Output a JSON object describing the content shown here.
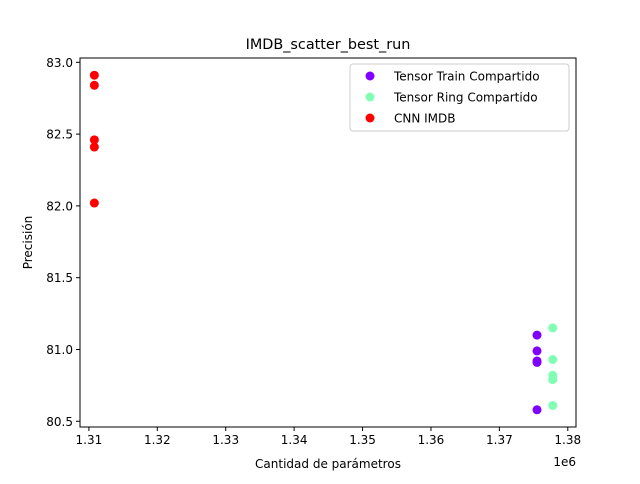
{
  "chart_data": {
    "type": "scatter",
    "title": "IMDB_scatter_best_run",
    "xlabel": "Cantidad de parámetros",
    "ylabel": "Precisión",
    "x_offset_label": "1e6",
    "xlim": [
      1.3087,
      1.3812
    ],
    "ylim": [
      80.46,
      83.03
    ],
    "x_ticks": [
      1.31,
      1.32,
      1.33,
      1.34,
      1.35,
      1.36,
      1.37,
      1.38
    ],
    "x_tick_labels": [
      "1.31",
      "1.32",
      "1.33",
      "1.34",
      "1.35",
      "1.36",
      "1.37",
      "1.38"
    ],
    "y_ticks": [
      80.5,
      81.0,
      81.5,
      82.0,
      82.5,
      83.0
    ],
    "y_tick_labels": [
      "80.5",
      "81.0",
      "81.5",
      "82.0",
      "82.5",
      "83.0"
    ],
    "grid": false,
    "legend_position": "top-right",
    "series": [
      {
        "name": "Tensor Train Compartido",
        "color": "#8000ff",
        "points": [
          {
            "x": 1.3755,
            "y": 81.1
          },
          {
            "x": 1.3755,
            "y": 80.99
          },
          {
            "x": 1.3755,
            "y": 80.92
          },
          {
            "x": 1.3755,
            "y": 80.91
          },
          {
            "x": 1.3755,
            "y": 80.58
          }
        ]
      },
      {
        "name": "Tensor Ring Compartido",
        "color": "#80ffb4",
        "points": [
          {
            "x": 1.3778,
            "y": 81.15
          },
          {
            "x": 1.3778,
            "y": 80.93
          },
          {
            "x": 1.3778,
            "y": 80.82
          },
          {
            "x": 1.3778,
            "y": 80.79
          },
          {
            "x": 1.3778,
            "y": 80.61
          }
        ]
      },
      {
        "name": "CNN IMDB",
        "color": "#ff0000",
        "points": [
          {
            "x": 1.3108,
            "y": 82.91
          },
          {
            "x": 1.3108,
            "y": 82.84
          },
          {
            "x": 1.3108,
            "y": 82.46
          },
          {
            "x": 1.3108,
            "y": 82.41
          },
          {
            "x": 1.3108,
            "y": 82.02
          }
        ]
      }
    ]
  }
}
